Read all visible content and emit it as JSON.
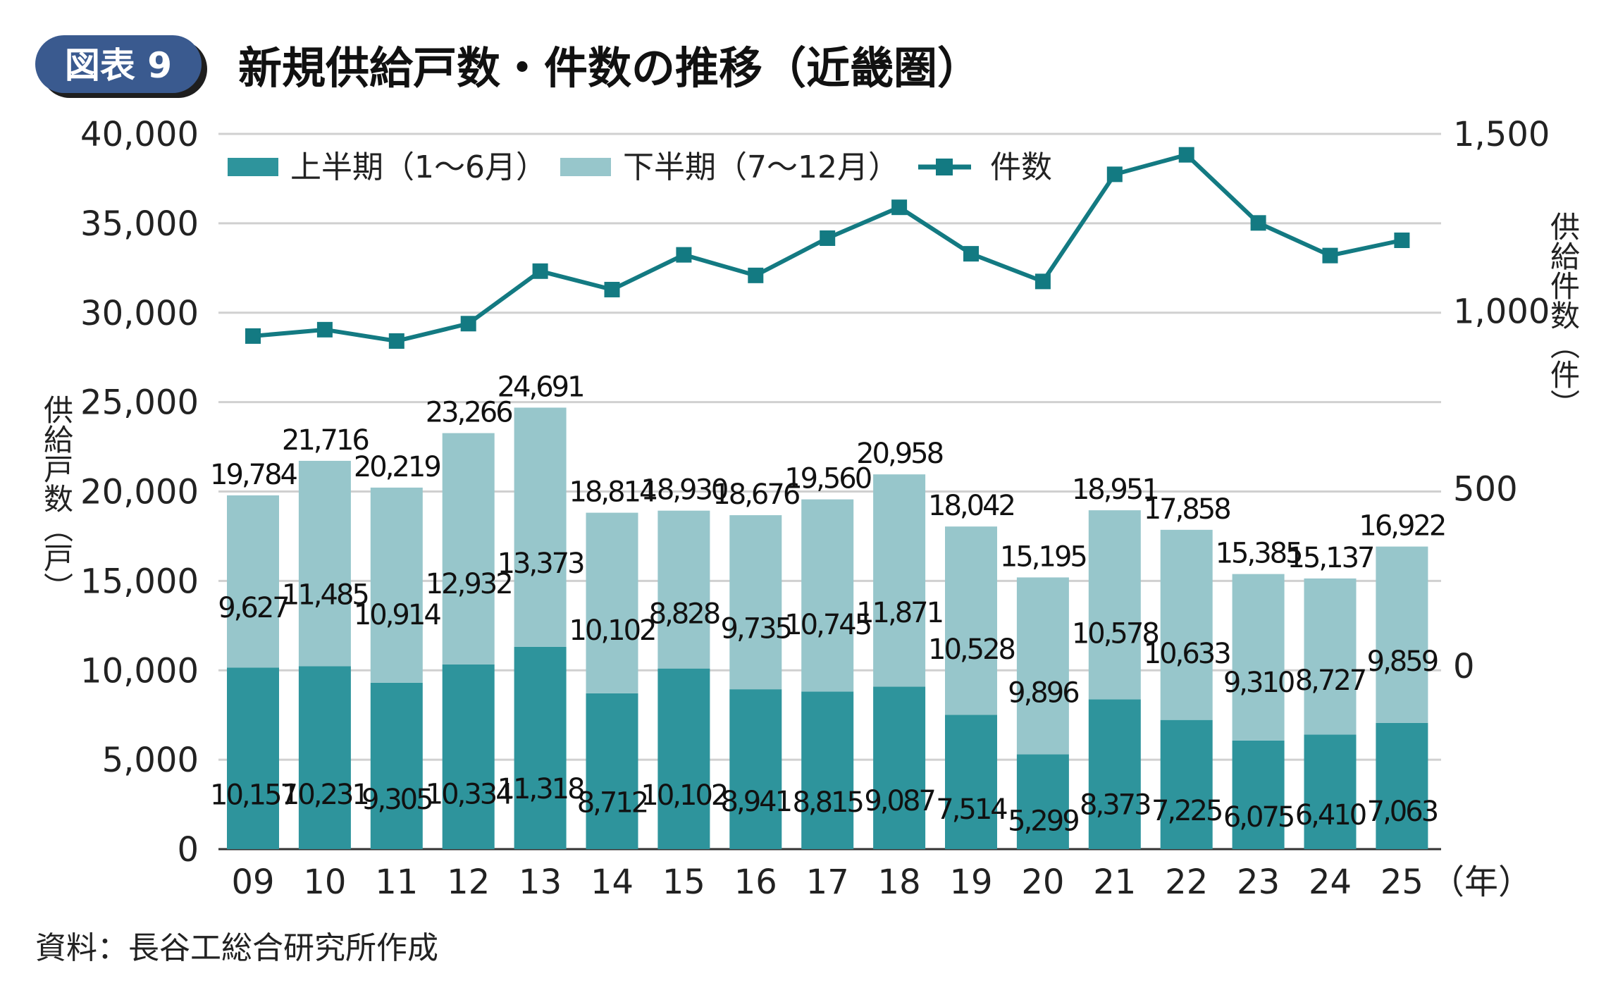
{
  "badge": "図表 9",
  "title": "新規供給戸数・件数の推移（近畿圏）",
  "source": "資料：長谷工総合研究所作成",
  "chart_data": {
    "type": "bar",
    "stacked": true,
    "categories": [
      "09",
      "10",
      "11",
      "12",
      "13",
      "14",
      "15",
      "16",
      "17",
      "18",
      "19",
      "20",
      "21",
      "22",
      "23",
      "24",
      "25"
    ],
    "x_unit": "（年）",
    "ylabel_left": "供給戸数（戸）",
    "ylabel_right": "供給件数（件）",
    "ylim_left": [
      0,
      40000
    ],
    "ylim_right": [
      0,
      1500
    ],
    "yticks_left": [
      "0",
      "5,000",
      "10,000",
      "15,000",
      "20,000",
      "25,000",
      "30,000",
      "35,000",
      "40,000"
    ],
    "yticks_right": [
      "0",
      "500",
      "1,000",
      "1,500"
    ],
    "legend_position": "top-left",
    "series": [
      {
        "name": "上半期（1～6月）",
        "kind": "bar",
        "color": "#2e949c",
        "values": [
          10157,
          10231,
          9305,
          10334,
          11318,
          8712,
          10102,
          8941,
          8815,
          9087,
          7514,
          5299,
          8373,
          7225,
          6075,
          6410,
          7063
        ],
        "labels": [
          "10,157",
          "10,231",
          "9,305",
          "10,334",
          "11,318",
          "8,712",
          "10,102",
          "8,941",
          "8,815",
          "9,087",
          "7,514",
          "5,299",
          "8,373",
          "7,225",
          "6,075",
          "6,410",
          "7,063"
        ]
      },
      {
        "name": "下半期（7～12月）",
        "kind": "bar",
        "color": "#97c6cb",
        "values": [
          9627,
          11485,
          10914,
          12932,
          13373,
          10102,
          8828,
          9735,
          10745,
          11871,
          10528,
          9896,
          10578,
          10633,
          9310,
          8727,
          9859
        ],
        "labels": [
          "9,627",
          "11,485",
          "10,914",
          "12,932",
          "13,373",
          "10,102",
          "8,828",
          "9,735",
          "10,745",
          "11,871",
          "10,528",
          "9,896",
          "10,578",
          "10,633",
          "9,310",
          "8,727",
          "9,859"
        ]
      },
      {
        "name": "件数",
        "kind": "line",
        "axis": "right",
        "color": "#137a82",
        "values": [
          930,
          948,
          916,
          965,
          1113,
          1061,
          1159,
          1101,
          1206,
          1293,
          1162,
          1084,
          1386,
          1441,
          1249,
          1157,
          1200
        ]
      }
    ],
    "totals": [
      "19,784",
      "21,716",
      "20,219",
      "23,266",
      "24,691",
      "18,814",
      "18,930",
      "18,676",
      "19,560",
      "20,958",
      "18,042",
      "15,195",
      "18,951",
      "17,858",
      "15,385",
      "15,137",
      "16,922"
    ]
  }
}
